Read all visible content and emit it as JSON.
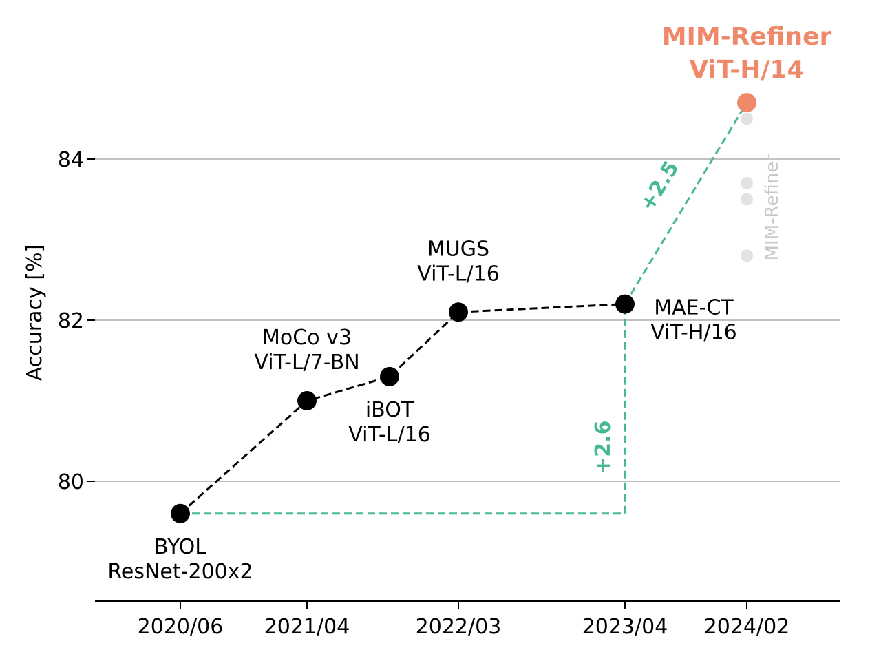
{
  "colors": {
    "baseline": "#000000",
    "highlight": "#f0896a",
    "gain": "#47b98f",
    "ghost": "#e2e2e2",
    "ghost_text": "#c7c7c7",
    "grid": "#c0c0c0"
  },
  "chart_data": {
    "type": "line",
    "ylabel": "Accuracy [%]",
    "xlabel": "",
    "ylim": [
      78.5,
      85.5
    ],
    "yticks": [
      80,
      82,
      84
    ],
    "grid": "horizontal",
    "x_ticks": [
      "2020/06",
      "2021/04",
      "2022/03",
      "2023/04",
      "2024/02"
    ],
    "series": [
      {
        "points": [
          {
            "x": "2020/06",
            "y": 79.6,
            "label": [
              "BYOL",
              "ResNet-200x2"
            ]
          },
          {
            "x": "2021/04",
            "y": 81.0,
            "label": [
              "MoCo v3",
              "ViT-L/7-BN"
            ]
          },
          {
            "x": "2021/10",
            "y": 81.3,
            "label": [
              "iBOT",
              "ViT-L/16"
            ]
          },
          {
            "x": "2022/03",
            "y": 82.1,
            "label": [
              "MUGS",
              "ViT-L/16"
            ]
          },
          {
            "x": "2023/04",
            "y": 82.2,
            "label": [
              "MAE-CT",
              "ViT-H/16"
            ]
          }
        ]
      }
    ],
    "highlight": {
      "x": "2024/02",
      "y": 84.7,
      "label": [
        "MIM-Refiner",
        "ViT-H/14"
      ]
    },
    "ghost_points": {
      "label": "MIM-Refiner",
      "x": "2024/02",
      "values": [
        84.5,
        83.7,
        83.5,
        82.8
      ]
    },
    "gains": [
      {
        "label": "+2.6",
        "from": 79.6,
        "to": 82.2
      },
      {
        "label": "+2.5",
        "from": 82.2,
        "to": 84.7
      }
    ]
  }
}
